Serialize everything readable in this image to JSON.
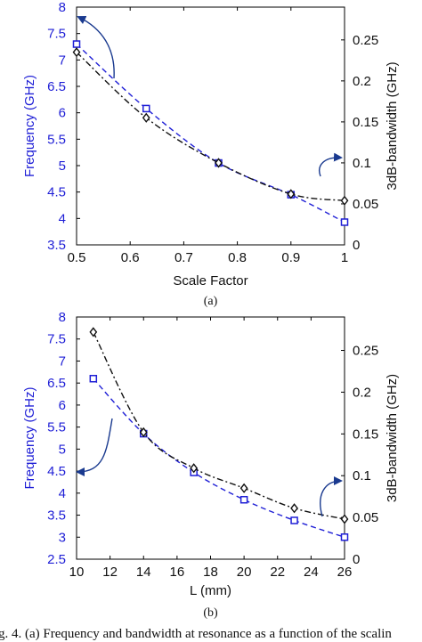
{
  "caption": "g. 4.   (a) Frequency and bandwidth at resonance as a function of the scalin",
  "chart_data": [
    {
      "panel_label": "(a)",
      "type": "line",
      "xlabel": "Scale Factor",
      "ylabel_left": "Frequency (GHz)",
      "ylabel_right": "3dB-bandwidth (GHz)",
      "xlim": [
        0.5,
        1
      ],
      "ylim_left": [
        3.5,
        8
      ],
      "ylim_right": [
        0,
        0.29
      ],
      "x_ticks": [
        "0.5",
        "0.6",
        "0.7",
        "0.8",
        "0.9",
        "1"
      ],
      "y_left_ticks": [
        "3.5",
        "4",
        "4.5",
        "5",
        "5.5",
        "6",
        "6.5",
        "7",
        "7.5",
        "8"
      ],
      "y_right_ticks": [
        "0",
        "0.05",
        "0.1",
        "0.15",
        "0.2",
        "0.25"
      ],
      "colors": {
        "frequency": "#1f1fd6",
        "bandwidth": "#111111"
      },
      "series": [
        {
          "axis": "left",
          "marker": "square",
          "style": "dashed",
          "x": [
            0.5,
            0.63,
            0.765,
            0.9,
            1.0
          ],
          "y": [
            7.3,
            6.08,
            5.05,
            4.45,
            3.93
          ]
        },
        {
          "axis": "right",
          "marker": "diamond",
          "style": "dashdot",
          "x": [
            0.5,
            0.63,
            0.765,
            0.9,
            1.0
          ],
          "y": [
            0.235,
            0.155,
            0.1,
            0.062,
            0.054
          ]
        }
      ],
      "annotations": [
        {
          "type": "arrow",
          "points_to": "left-axis"
        },
        {
          "type": "arrow",
          "points_to": "right-axis"
        }
      ],
      "grid": false
    },
    {
      "panel_label": "(b)",
      "type": "line",
      "xlabel": "L (mm)",
      "ylabel_left": "Frequency (GHz)",
      "ylabel_right": "3dB-bandwidth (GHz)",
      "xlim": [
        10,
        26
      ],
      "ylim_left": [
        2.5,
        8
      ],
      "ylim_right": [
        0,
        0.29
      ],
      "x_ticks": [
        "10",
        "12",
        "14",
        "16",
        "18",
        "20",
        "22",
        "24",
        "26"
      ],
      "y_left_ticks": [
        "2.5",
        "3",
        "3.5",
        "4",
        "4.5",
        "5",
        "5.5",
        "6",
        "6.5",
        "7",
        "7.5",
        "8"
      ],
      "y_right_ticks": [
        "0",
        "0.05",
        "0.1",
        "0.15",
        "0.2",
        "0.25"
      ],
      "colors": {
        "frequency": "#1f1fd6",
        "bandwidth": "#111111"
      },
      "series": [
        {
          "axis": "left",
          "marker": "square",
          "style": "dashed",
          "x": [
            11,
            14,
            17,
            20,
            23,
            26
          ],
          "y": [
            6.6,
            5.35,
            4.47,
            3.85,
            3.38,
            3.0
          ]
        },
        {
          "axis": "right",
          "marker": "diamond",
          "style": "dashdot",
          "x": [
            11,
            14,
            17,
            20,
            23,
            26
          ],
          "y": [
            0.272,
            0.152,
            0.109,
            0.085,
            0.061,
            0.048
          ]
        }
      ],
      "annotations": [
        {
          "type": "arrow",
          "points_to": "left-axis"
        },
        {
          "type": "arrow",
          "points_to": "right-axis"
        }
      ],
      "grid": false
    }
  ]
}
